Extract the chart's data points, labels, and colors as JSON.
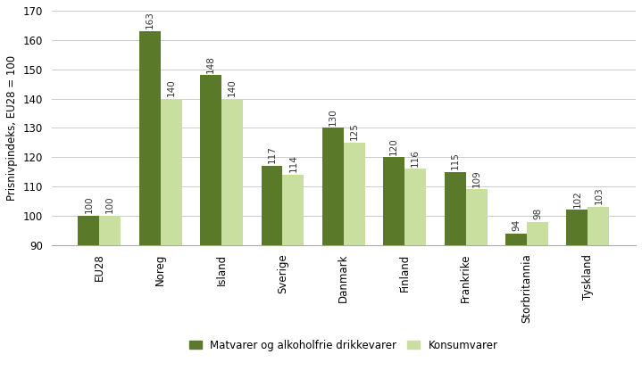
{
  "categories": [
    "EU28",
    "Noreg",
    "Island",
    "Sverige",
    "Danmark",
    "Finland",
    "Frankrike",
    "Storbritannia",
    "Tyskland"
  ],
  "matvarer": [
    100,
    163,
    148,
    117,
    130,
    120,
    115,
    94,
    102
  ],
  "konsumvarer": [
    100,
    140,
    140,
    114,
    125,
    116,
    109,
    98,
    103
  ],
  "color_matvarer": "#5a7a2a",
  "color_konsumvarer": "#c8dfa0",
  "ylabel": "Prisnivpindeks, EU28 = 100",
  "ylim": [
    90,
    170
  ],
  "yticks": [
    90,
    100,
    110,
    120,
    130,
    140,
    150,
    160,
    170
  ],
  "legend_matvarer": "Matvarer og alkoholfrie drikkevarer",
  "legend_konsumvarer": "Konsumvarer",
  "bar_width": 0.35,
  "label_fontsize": 7.5,
  "tick_fontsize": 8.5,
  "legend_fontsize": 8.5,
  "ylabel_fontsize": 8.5
}
